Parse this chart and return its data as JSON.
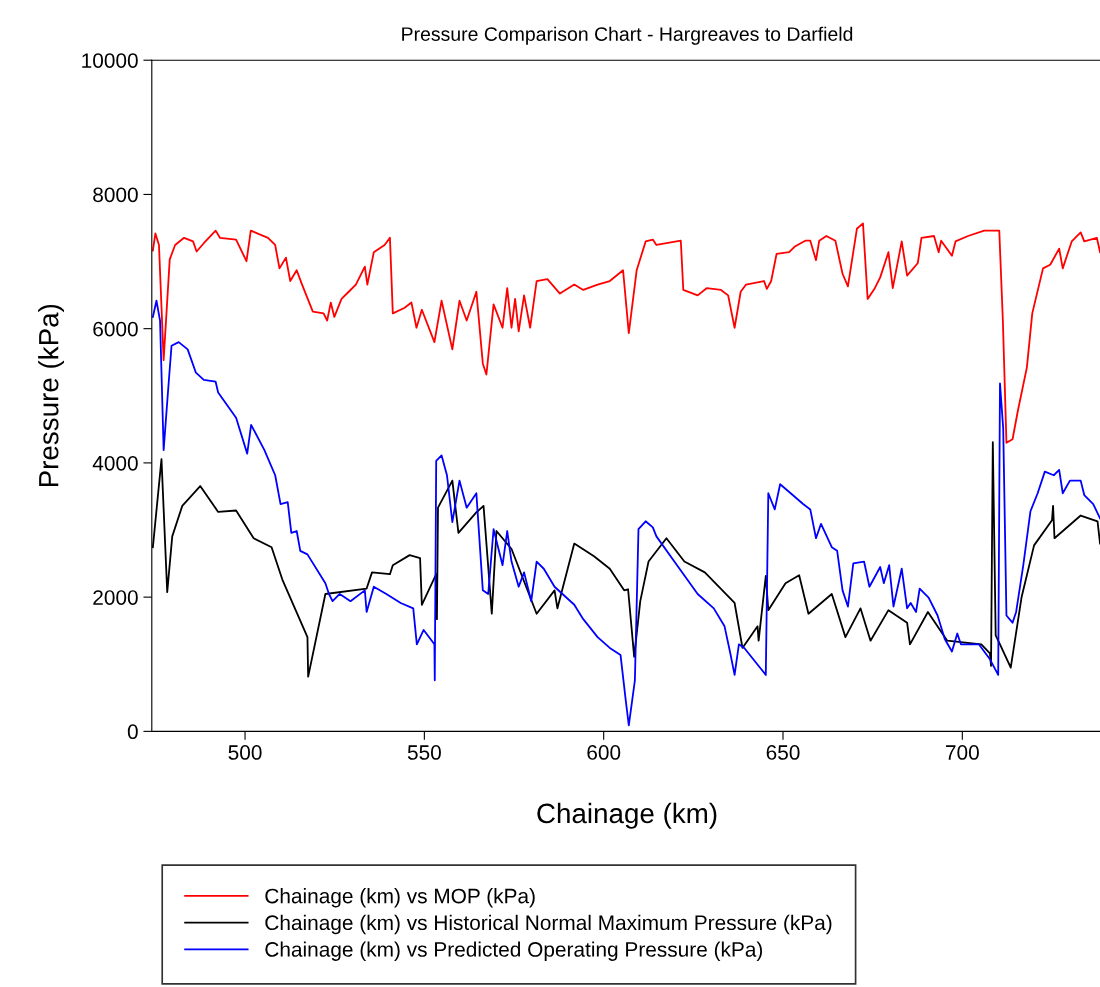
{
  "chart_data": {
    "type": "line",
    "title": "Pressure Comparison Chart - Hargreaves to Darfield",
    "xlabel": "Chainage (km)",
    "ylabel": "Pressure (kPa)",
    "xlim": [
      474,
      739
    ],
    "xticks": [
      500,
      550,
      600,
      650,
      700
    ],
    "ylim": [
      0,
      10000
    ],
    "yticks": [
      0,
      2000,
      4000,
      6000,
      8000,
      10000
    ],
    "grid": false,
    "legend": "bottom",
    "marker": "none",
    "line_style": "solid",
    "series": [
      {
        "name": "Chainage (km) vs MOP (kPa)",
        "color": "#ff0000",
        "x": [
          474.3,
          475,
          476,
          477.3,
          479,
          480.5,
          483,
          485.5,
          486.5,
          488.5,
          491.8,
          493,
          497.5,
          500.4,
          501.6,
          506.4,
          508.4,
          509.6,
          511.4,
          512.6,
          514.4,
          515.9,
          518.9,
          521.9,
          522.9,
          523.9,
          524.9,
          526.9,
          528.9,
          530.9,
          533.4,
          534.1,
          535.9,
          538.9,
          540.4,
          541.2,
          544.4,
          546.4,
          547.8,
          549.3,
          552.8,
          554.8,
          557.8,
          559.8,
          561.8,
          564.5,
          566.3,
          567.3,
          569.3,
          571.8,
          573.1,
          574.3,
          575.3,
          576.3,
          577.8,
          579.5,
          581.3,
          584.3,
          587.8,
          591.8,
          594.3,
          598.3,
          601.7,
          605.4,
          607,
          609.2,
          611.7,
          613.7,
          614.7,
          621.5,
          622.2,
          626.2,
          628.7,
          632.7,
          634.7,
          636.5,
          638.2,
          639.7,
          644.7,
          645.5,
          646.7,
          648.2,
          651.7,
          653.2,
          656.2,
          657.6,
          659.2,
          660.1,
          662.1,
          664.6,
          666.6,
          668.1,
          670.6,
          672.3,
          673.6,
          675.6,
          677.1,
          679.4,
          680.6,
          683.1,
          684.6,
          687.6,
          688.6,
          692.1,
          693.4,
          694.1,
          697.1,
          698.1,
          701.6,
          706.1,
          710.3,
          711.3,
          712.3,
          714,
          715.5,
          718,
          719.5,
          722.5,
          724.5,
          727,
          728,
          730.5,
          733,
          734,
          737.5,
          738.4
        ],
        "values": [
          7166,
          7418,
          7247,
          5531,
          7032,
          7247,
          7354,
          7300,
          7150,
          7273,
          7461,
          7354,
          7327,
          7005,
          7461,
          7354,
          7247,
          6898,
          7059,
          6710,
          6871,
          6657,
          6255,
          6228,
          6121,
          6389,
          6175,
          6443,
          6550,
          6657,
          6925,
          6657,
          7139,
          7247,
          7354,
          6228,
          6308,
          6389,
          6014,
          6282,
          5799,
          6416,
          5692,
          6416,
          6121,
          6550,
          5478,
          5317,
          6362,
          6014,
          6603,
          6014,
          6443,
          5960,
          6496,
          6014,
          6710,
          6737,
          6523,
          6657,
          6577,
          6657,
          6710,
          6871,
          5933,
          6871,
          7300,
          7327,
          7247,
          7311,
          6577,
          6496,
          6603,
          6577,
          6496,
          6014,
          6550,
          6657,
          6710,
          6593,
          6710,
          7113,
          7139,
          7220,
          7311,
          7311,
          7021,
          7311,
          7381,
          7311,
          6818,
          6630,
          7488,
          7568,
          6443,
          6603,
          6764,
          7139,
          6603,
          7300,
          6791,
          6979,
          7354,
          7381,
          7139,
          7311,
          7086,
          7300,
          7381,
          7461,
          7461,
          6121,
          4299,
          4352,
          4781,
          5424,
          6228,
          6898,
          6952,
          7193,
          6898,
          7300,
          7434,
          7300,
          7354,
          7139
        ]
      },
      {
        "name": "Chainage (km) vs Historical Normal Maximum Pressure (kPa)",
        "color": "#000000",
        "x": [
          474.3,
          476.7,
          478.3,
          479.7,
          482.5,
          487.5,
          492.5,
          497.5,
          502.4,
          507.4,
          510.4,
          517.4,
          517.6,
          522.4,
          533.9,
          535.4,
          540.4,
          541.2,
          545.9,
          548.8,
          549.3,
          553.3,
          553.5,
          553.8,
          557.8,
          559.5,
          564.3,
          566.5,
          568.8,
          570.1,
          574.3,
          581.3,
          586.3,
          587.1,
          591.8,
          597.3,
          601.7,
          605.7,
          606.8,
          608.5,
          610.2,
          612.5,
          617.5,
          622.5,
          628.2,
          636.5,
          638.7,
          642.9,
          643.2,
          645.2,
          645.9,
          650.7,
          654.5,
          657.1,
          663.6,
          667.4,
          671.6,
          674.4,
          679.4,
          684.6,
          685.4,
          690.4,
          695.8,
          705.3,
          707.7,
          708,
          708.5,
          709.3,
          710.5,
          713.5,
          716.5,
          720,
          725,
          725.3,
          725.7,
          733,
          737.7,
          738.4
        ],
        "values": [
          2744,
          4057,
          2074,
          2905,
          3360,
          3655,
          3270,
          3291,
          2878,
          2744,
          2262,
          1404,
          815,
          2047,
          2128,
          2369,
          2342,
          2476,
          2626,
          2583,
          1886,
          2342,
          1672,
          3334,
          3736,
          2958,
          3253,
          3360,
          1753,
          2985,
          2717,
          1753,
          2101,
          1833,
          2798,
          2610,
          2423,
          2101,
          2117,
          1109,
          1940,
          2530,
          2878,
          2530,
          2369,
          1913,
          1243,
          1565,
          1351,
          2315,
          1806,
          2208,
          2326,
          1753,
          2047,
          1404,
          1833,
          1351,
          1806,
          1619,
          1297,
          1779,
          1351,
          1297,
          1163,
          975,
          4309,
          1431,
          1297,
          949,
          1994,
          2771,
          3146,
          3360,
          2878,
          3216,
          3130,
          2798
        ]
      },
      {
        "name": "Chainage (km) vs Predicted Operating Pressure (kPa)",
        "color": "#0000ff",
        "x": [
          474.3,
          475.3,
          476.3,
          477.3,
          478.5,
          479.5,
          481.5,
          484,
          486.3,
          488.5,
          491.8,
          492.5,
          497.5,
          500.6,
          501.7,
          505.4,
          508.4,
          509.9,
          511.9,
          512.9,
          514.4,
          515.4,
          517.4,
          522.4,
          523.4,
          524.4,
          526.4,
          529.4,
          533.4,
          533.9,
          535.9,
          539.4,
          543.4,
          546.9,
          547.9,
          549.8,
          552.8,
          552.9,
          553.3,
          554.8,
          556.3,
          557.8,
          559.8,
          561.8,
          564.5,
          566.3,
          567.8,
          569.3,
          571.8,
          573.1,
          574.3,
          576.3,
          577.8,
          579.8,
          581.3,
          583.3,
          586.3,
          591.8,
          594.3,
          598.3,
          601.7,
          604.7,
          606.2,
          607,
          608.7,
          609.7,
          611.7,
          613.7,
          614.7,
          619.7,
          626.2,
          630.7,
          633.7,
          635.2,
          636.5,
          637.7,
          639.2,
          645.2,
          645.9,
          647.7,
          649.2,
          652.7,
          655.6,
          657.6,
          659.2,
          660.6,
          663.6,
          665.1,
          666.6,
          668.1,
          669.6,
          672.6,
          674.1,
          677.1,
          678.1,
          679.6,
          680.8,
          683.1,
          684.6,
          685.6,
          687.1,
          688.1,
          690.6,
          693.1,
          695.1,
          697.1,
          698.6,
          699.6,
          704.6,
          707.6,
          710,
          710.5,
          711.4,
          712.3,
          714,
          715,
          717,
          719,
          721,
          723,
          725.5,
          727,
          728,
          730,
          733,
          734,
          736.5,
          738.4
        ],
        "values": [
          6175,
          6416,
          6121,
          4191,
          5049,
          5746,
          5799,
          5692,
          5344,
          5237,
          5210,
          5049,
          4674,
          4138,
          4567,
          4191,
          3816,
          3387,
          3414,
          2958,
          2985,
          2690,
          2637,
          2208,
          2047,
          1940,
          2047,
          1940,
          2101,
          1779,
          2155,
          2047,
          1913,
          1833,
          1297,
          1511,
          1297,
          761,
          4031,
          4111,
          3816,
          3119,
          3736,
          3333,
          3548,
          2101,
          2047,
          3012,
          2476,
          2985,
          2530,
          2155,
          2369,
          1940,
          2530,
          2423,
          2155,
          1886,
          1672,
          1404,
          1243,
          1136,
          440,
          91,
          761,
          3012,
          3130,
          3039,
          2905,
          2530,
          2047,
          1833,
          1565,
          1190,
          841,
          1297,
          1243,
          841,
          3548,
          3307,
          3682,
          3521,
          3387,
          3307,
          2878,
          3092,
          2744,
          2690,
          2101,
          1860,
          2503,
          2530,
          2155,
          2449,
          2208,
          2476,
          1860,
          2423,
          1833,
          1913,
          1779,
          2128,
          1994,
          1726,
          1377,
          1190,
          1458,
          1297,
          1297,
          1083,
          841,
          5183,
          4513,
          1726,
          1619,
          1779,
          2476,
          3280,
          3548,
          3870,
          3816,
          3897,
          3548,
          3736,
          3736,
          3521,
          3387,
          3173
        ]
      }
    ]
  }
}
